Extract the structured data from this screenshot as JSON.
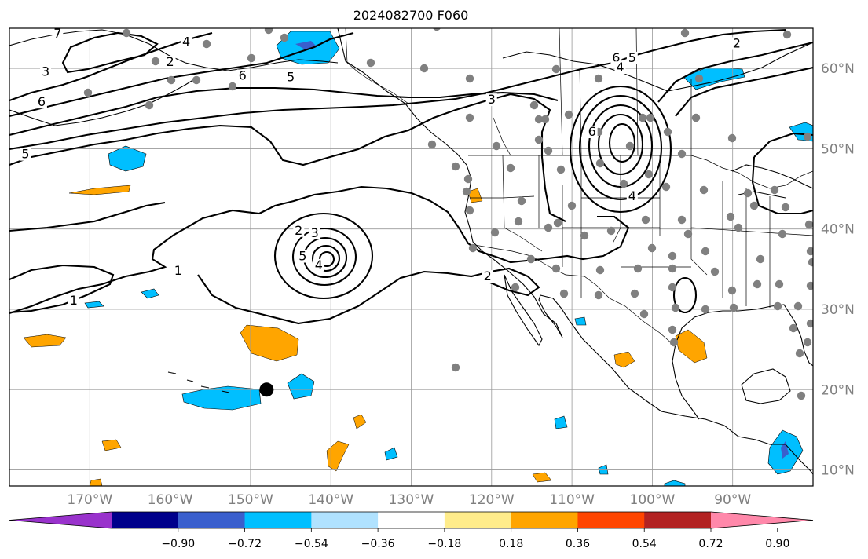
{
  "title": "2024082700 F060",
  "map": {
    "extent": {
      "lon_min": -180,
      "lon_max": -80,
      "lat_min": 8,
      "lat_max": 65
    },
    "lat_ticks": [
      {
        "value": 10,
        "label": "10°N"
      },
      {
        "value": 20,
        "label": "20°N"
      },
      {
        "value": 30,
        "label": "30°N"
      },
      {
        "value": 40,
        "label": "40°N"
      },
      {
        "value": 50,
        "label": "50°N"
      },
      {
        "value": 60,
        "label": "60°N"
      }
    ],
    "lon_ticks": [
      {
        "value": -170,
        "label": "170°W"
      },
      {
        "value": -160,
        "label": "160°W"
      },
      {
        "value": -150,
        "label": "150°W"
      },
      {
        "value": -140,
        "label": "140°W"
      },
      {
        "value": -130,
        "label": "130°W"
      },
      {
        "value": -120,
        "label": "120°W"
      },
      {
        "value": -110,
        "label": "110°W"
      },
      {
        "value": -100,
        "label": "100°W"
      },
      {
        "value": -90,
        "label": "90°W"
      }
    ],
    "marked_point": {
      "lon": -148,
      "lat": 20
    },
    "station_color": "#808080",
    "contour_labels": [
      {
        "text": "1",
        "lon": -159,
        "lat": 34.5
      },
      {
        "text": "1",
        "lon": -172,
        "lat": 30.8
      },
      {
        "text": "2",
        "lon": -144,
        "lat": 39.5
      },
      {
        "text": "3",
        "lon": -142,
        "lat": 39.2
      },
      {
        "text": "4",
        "lon": -141.5,
        "lat": 35.2
      },
      {
        "text": "5",
        "lon": -143.5,
        "lat": 36.3
      },
      {
        "text": "2",
        "lon": -120.5,
        "lat": 33.8
      },
      {
        "text": "3",
        "lon": -120,
        "lat": 55.8
      },
      {
        "text": "3",
        "lon": -175.5,
        "lat": 59.3
      },
      {
        "text": "6",
        "lon": -176,
        "lat": 55.5
      },
      {
        "text": "5",
        "lon": -178,
        "lat": 49
      },
      {
        "text": "6",
        "lon": -151,
        "lat": 58.8
      },
      {
        "text": "5",
        "lon": -145,
        "lat": 58.6
      },
      {
        "text": "4",
        "lon": -158,
        "lat": 63
      },
      {
        "text": "2",
        "lon": -160,
        "lat": 60.5
      },
      {
        "text": "6",
        "lon": -104.5,
        "lat": 61
      },
      {
        "text": "5",
        "lon": -102.5,
        "lat": 61
      },
      {
        "text": "4",
        "lon": -104,
        "lat": 59.8
      },
      {
        "text": "2",
        "lon": -89.5,
        "lat": 62.8
      },
      {
        "text": "6",
        "lon": -107.5,
        "lat": 51.8
      },
      {
        "text": "4",
        "lon": -102.5,
        "lat": 43.8
      },
      {
        "text": "7",
        "lon": -174,
        "lat": 64
      }
    ]
  },
  "colorbar": {
    "colors": [
      "#9932cc",
      "#00008b",
      "#3a5fcd",
      "#00bfff",
      "#b0e2ff",
      "#ffffff",
      "#ffec8b",
      "#ffa500",
      "#ff4500",
      "#b22222",
      "#ff88aa"
    ],
    "ticks": [
      "−0.90",
      "−0.72",
      "−0.54",
      "−0.36",
      "−0.18",
      "0.18",
      "0.36",
      "0.54",
      "0.72",
      "0.90"
    ]
  }
}
